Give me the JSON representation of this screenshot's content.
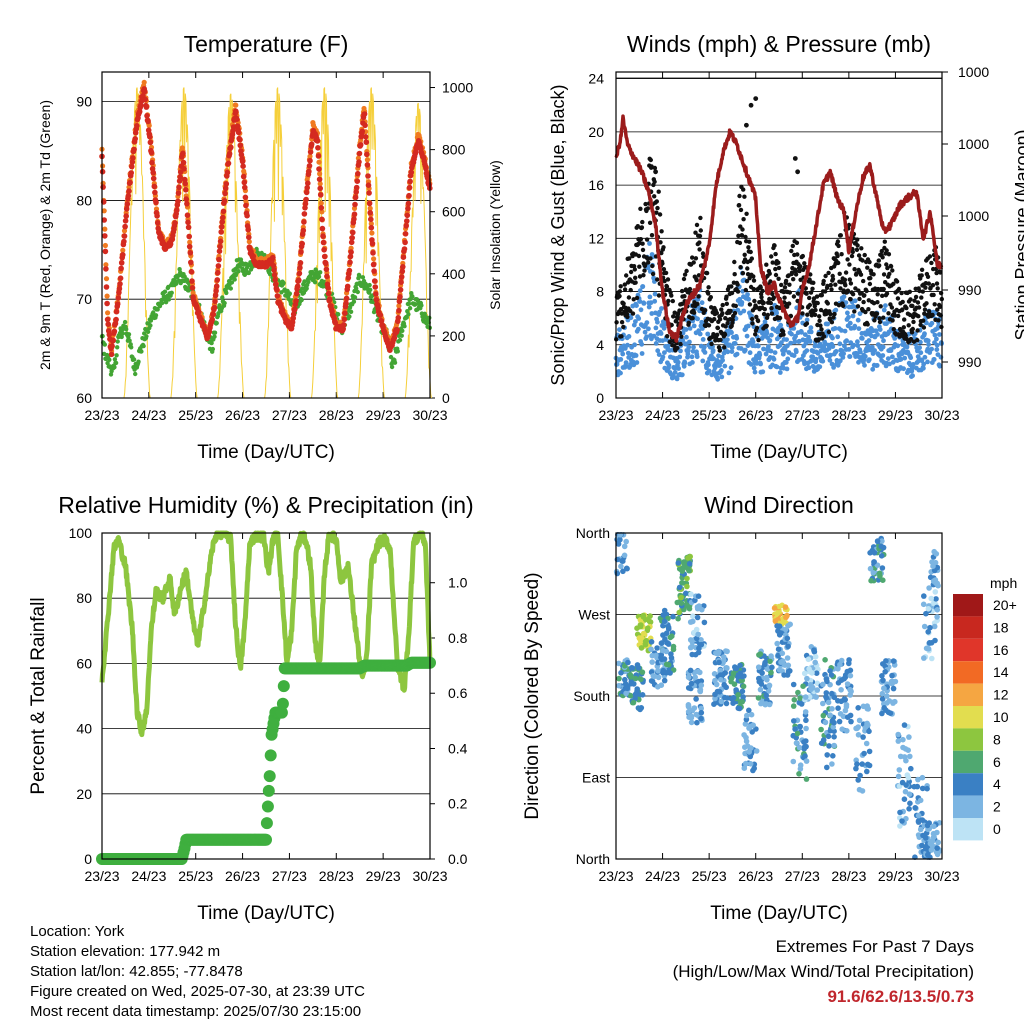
{
  "panels": {
    "temperature": {
      "title": "Temperature (F)",
      "xlabel": "Time (Day/UTC)",
      "ylabel_left": "2m & 9m T (Red, Orange) & 2m Td (Green)",
      "ylabel_right": "Solar Insolation (Yellow)"
    },
    "winds": {
      "title": "Winds (mph) & Pressure (mb)",
      "xlabel": "Time (Day/UTC)",
      "ylabel_left": "Sonic/Prop Wind & Gust (Blue, Black)",
      "ylabel_right": "Station Pressure (Maroon)"
    },
    "humidity": {
      "title": "Relative Humidity (%) & Precipitation (in)",
      "xlabel": "Time (Day/UTC)",
      "ylabel_left": "Percent & Total Rainfall"
    },
    "direction": {
      "title": "Wind Direction",
      "xlabel": "Time (Day/UTC)",
      "ylabel_left": "Direction (Colored By Speed)"
    }
  },
  "info": {
    "location": "Location: York",
    "elevation": "Station elevation: 177.942 m",
    "latlon": "Station lat/lon: 42.855; -77.8478",
    "created": "Figure created on Wed, 2025-07-30, at 23:39 UTC",
    "recent": "Most recent data timestamp: 2025/07/30 23:15:00"
  },
  "extremes": {
    "line1": "Extremes For Past 7 Days",
    "line2": "(High/Low/Max Wind/Total Precipitation)",
    "values": "91.6/62.6/13.5/0.73"
  },
  "chart_data": [
    {
      "type": "line",
      "title": "Temperature (F)",
      "xlabel": "Time (Day/UTC)",
      "ylabel": "2m & 9m T (Red, Orange) & 2m Td (Green)",
      "y2label": "Solar Insolation (Yellow)",
      "x": [
        "23/23",
        "24/23",
        "25/23",
        "26/23",
        "27/23",
        "28/23",
        "29/23",
        "30/23"
      ],
      "ylim": [
        60,
        93
      ],
      "yticks": [
        60,
        70,
        80,
        90
      ],
      "y2lim": [
        0,
        1050
      ],
      "y2ticks": [
        0,
        200,
        400,
        600,
        800,
        1000
      ],
      "series": [
        {
          "axis": "left",
          "color": "#d42a20",
          "points": [
            [
              0,
              84.5
            ],
            [
              0.05,
              78
            ],
            [
              0.12,
              68
            ],
            [
              0.2,
              64.5
            ],
            [
              0.35,
              70
            ],
            [
              0.55,
              80
            ],
            [
              0.75,
              88
            ],
            [
              0.9,
              91.3
            ],
            [
              1.05,
              85
            ],
            [
              1.2,
              77
            ],
            [
              1.35,
              75
            ],
            [
              1.5,
              76
            ],
            [
              1.6,
              79
            ],
            [
              1.72,
              85
            ],
            [
              1.82,
              79
            ],
            [
              1.95,
              70
            ],
            [
              2.1,
              68
            ],
            [
              2.25,
              66
            ],
            [
              2.4,
              69
            ],
            [
              2.55,
              77
            ],
            [
              2.7,
              84
            ],
            [
              2.85,
              89
            ],
            [
              3.0,
              84
            ],
            [
              3.15,
              75
            ],
            [
              3.3,
              73.5
            ],
            [
              3.5,
              73.5
            ],
            [
              3.65,
              74
            ],
            [
              3.75,
              70
            ],
            [
              3.9,
              68
            ],
            [
              4.05,
              67
            ],
            [
              4.2,
              72
            ],
            [
              4.35,
              80
            ],
            [
              4.5,
              87
            ],
            [
              4.6,
              86
            ],
            [
              4.72,
              76
            ],
            [
              4.85,
              70
            ],
            [
              5.0,
              67
            ],
            [
              5.15,
              67
            ],
            [
              5.3,
              74
            ],
            [
              5.5,
              85
            ],
            [
              5.6,
              89
            ],
            [
              5.72,
              79
            ],
            [
              5.85,
              70
            ],
            [
              6.0,
              67
            ],
            [
              6.15,
              65
            ],
            [
              6.3,
              67
            ],
            [
              6.45,
              75
            ],
            [
              6.6,
              83
            ],
            [
              6.75,
              86
            ],
            [
              6.85,
              84.5
            ],
            [
              7.0,
              81
            ]
          ]
        },
        {
          "axis": "left",
          "color": "#f07a20",
          "points": [
            [
              0.55,
              81
            ],
            [
              0.85,
              90
            ],
            [
              2.85,
              88.5
            ],
            [
              4.5,
              87.5
            ],
            [
              5.6,
              88
            ],
            [
              6.75,
              87
            ]
          ]
        },
        {
          "axis": "left",
          "color": "#43a534",
          "points": [
            [
              0,
              66
            ],
            [
              0.1,
              64
            ],
            [
              0.25,
              62.5
            ],
            [
              0.35,
              66
            ],
            [
              0.5,
              67.5
            ],
            [
              0.7,
              63
            ],
            [
              0.9,
              66
            ],
            [
              1.1,
              68.5
            ],
            [
              1.3,
              70
            ],
            [
              1.5,
              71
            ],
            [
              1.65,
              72.5
            ],
            [
              1.8,
              71.5
            ],
            [
              2.0,
              70
            ],
            [
              2.2,
              67
            ],
            [
              2.35,
              65
            ],
            [
              2.5,
              69
            ],
            [
              2.7,
              71
            ],
            [
              2.9,
              73.5
            ],
            [
              3.1,
              73
            ],
            [
              3.3,
              74.5
            ],
            [
              3.5,
              74
            ],
            [
              3.7,
              72
            ],
            [
              3.9,
              71
            ],
            [
              4.1,
              69
            ],
            [
              4.3,
              71
            ],
            [
              4.5,
              72.5
            ],
            [
              4.7,
              72
            ],
            [
              4.9,
              70
            ],
            [
              5.1,
              67
            ],
            [
              5.3,
              69
            ],
            [
              5.5,
              72
            ],
            [
              5.7,
              71
            ],
            [
              5.9,
              68
            ],
            [
              6.1,
              66
            ],
            [
              6.2,
              63
            ],
            [
              6.4,
              67
            ],
            [
              6.6,
              70
            ],
            [
              6.8,
              69
            ],
            [
              6.95,
              67.5
            ]
          ]
        },
        {
          "axis": "right",
          "color": "#f5cf3a",
          "peaks": [
            0.75,
            1.75,
            2.75,
            3.75,
            4.75,
            5.75,
            6.75
          ],
          "peak_values": [
            1000,
            1000,
            980,
            1000,
            1000,
            1000,
            950
          ]
        }
      ]
    },
    {
      "type": "scatter",
      "title": "Winds (mph) & Pressure (mb)",
      "xlabel": "Time (Day/UTC)",
      "ylabel": "Sonic/Prop Wind & Gust (Blue, Black)",
      "y2label": "Station Pressure (Maroon)",
      "x": [
        "23/23",
        "24/23",
        "25/23",
        "26/23",
        "27/23",
        "28/23",
        "29/23",
        "30/23"
      ],
      "ylim": [
        0,
        24.5
      ],
      "yticks": [
        0,
        4,
        8,
        12,
        16,
        20,
        24
      ],
      "y2ticklabels": [
        "1000",
        "1000",
        "1000",
        "990",
        "990"
      ],
      "series": [
        {
          "name": "pressure",
          "color": "#9b1c1c",
          "points": [
            [
              0,
              18
            ],
            [
              0.1,
              19.5
            ],
            [
              0.15,
              21
            ],
            [
              0.25,
              19
            ],
            [
              0.4,
              18
            ],
            [
              0.55,
              17
            ],
            [
              0.7,
              15.5
            ],
            [
              0.85,
              13
            ],
            [
              1.0,
              8
            ],
            [
              1.15,
              5
            ],
            [
              1.3,
              4.5
            ],
            [
              1.5,
              7
            ],
            [
              1.6,
              7.5
            ],
            [
              1.8,
              8.5
            ],
            [
              2.0,
              11.5
            ],
            [
              2.15,
              16
            ],
            [
              2.3,
              18.5
            ],
            [
              2.45,
              20
            ],
            [
              2.6,
              19
            ],
            [
              2.8,
              17
            ],
            [
              3.0,
              15
            ],
            [
              3.1,
              10
            ],
            [
              3.25,
              8
            ],
            [
              3.4,
              8.5
            ],
            [
              3.55,
              7
            ],
            [
              3.75,
              5.5
            ],
            [
              3.9,
              6
            ],
            [
              4.0,
              8
            ],
            [
              4.15,
              10
            ],
            [
              4.3,
              13
            ],
            [
              4.45,
              16
            ],
            [
              4.6,
              17
            ],
            [
              4.75,
              15
            ],
            [
              4.9,
              14
            ],
            [
              5.0,
              11
            ],
            [
              5.15,
              14
            ],
            [
              5.3,
              16.5
            ],
            [
              5.45,
              17.5
            ],
            [
              5.6,
              15
            ],
            [
              5.75,
              12.5
            ],
            [
              5.9,
              13
            ],
            [
              6.1,
              14.5
            ],
            [
              6.25,
              15
            ],
            [
              6.45,
              15.5
            ],
            [
              6.6,
              12
            ],
            [
              6.75,
              14
            ],
            [
              6.9,
              10
            ],
            [
              7.0,
              10
            ]
          ]
        },
        {
          "name": "wind",
          "color": "#4a90d9"
        },
        {
          "name": "gust",
          "color": "#111111"
        }
      ]
    },
    {
      "type": "line",
      "title": "Relative Humidity (%) & Precipitation (in)",
      "xlabel": "Time (Day/UTC)",
      "ylabel": "Percent & Total Rainfall",
      "x": [
        "23/23",
        "24/23",
        "25/23",
        "26/23",
        "27/23",
        "28/23",
        "29/23",
        "30/23"
      ],
      "ylim": [
        0,
        100
      ],
      "yticks": [
        0,
        20,
        40,
        60,
        80,
        100
      ],
      "y2ticks": [
        "0.0",
        "0.2",
        "0.4",
        "0.6",
        "0.8",
        "1.0"
      ],
      "series": [
        {
          "name": "rh",
          "color": "#8dc63f",
          "points": [
            [
              0,
              55
            ],
            [
              0.1,
              70
            ],
            [
              0.25,
              95
            ],
            [
              0.35,
              98
            ],
            [
              0.5,
              90
            ],
            [
              0.65,
              70
            ],
            [
              0.75,
              45
            ],
            [
              0.85,
              39
            ],
            [
              0.95,
              45
            ],
            [
              1.05,
              70
            ],
            [
              1.15,
              82
            ],
            [
              1.3,
              80
            ],
            [
              1.45,
              86
            ],
            [
              1.55,
              75
            ],
            [
              1.7,
              84
            ],
            [
              1.8,
              88
            ],
            [
              1.95,
              72
            ],
            [
              2.05,
              66
            ],
            [
              2.2,
              80
            ],
            [
              2.35,
              95
            ],
            [
              2.45,
              100
            ],
            [
              2.6,
              100
            ],
            [
              2.75,
              98
            ],
            [
              2.85,
              72
            ],
            [
              2.95,
              58
            ],
            [
              3.05,
              72
            ],
            [
              3.15,
              96
            ],
            [
              3.25,
              99
            ],
            [
              3.45,
              99
            ],
            [
              3.55,
              88
            ],
            [
              3.65,
              98
            ],
            [
              3.75,
              100
            ],
            [
              3.85,
              80
            ],
            [
              3.95,
              60
            ],
            [
              4.05,
              70
            ],
            [
              4.15,
              95
            ],
            [
              4.25,
              99
            ],
            [
              4.35,
              98
            ],
            [
              4.45,
              90
            ],
            [
              4.55,
              66
            ],
            [
              4.65,
              60
            ],
            [
              4.75,
              88
            ],
            [
              4.85,
              100
            ],
            [
              5.0,
              98
            ],
            [
              5.1,
              85
            ],
            [
              5.25,
              90
            ],
            [
              5.4,
              72
            ],
            [
              5.55,
              55
            ],
            [
              5.65,
              62
            ],
            [
              5.75,
              90
            ],
            [
              5.9,
              97
            ],
            [
              6.05,
              98
            ],
            [
              6.15,
              95
            ],
            [
              6.3,
              60
            ],
            [
              6.45,
              52
            ],
            [
              6.55,
              70
            ],
            [
              6.65,
              97
            ],
            [
              6.8,
              100
            ],
            [
              6.9,
              97
            ],
            [
              7.0,
              60
            ]
          ]
        },
        {
          "name": "precip",
          "color": "#3faf3f",
          "points": [
            [
              0,
              0
            ],
            [
              1.7,
              0
            ],
            [
              1.75,
              0.03
            ],
            [
              1.8,
              0.07
            ],
            [
              3.5,
              0.07
            ],
            [
              3.55,
              0.22
            ],
            [
              3.58,
              0.3
            ],
            [
              3.62,
              0.45
            ],
            [
              3.7,
              0.53
            ],
            [
              3.85,
              0.53
            ],
            [
              3.9,
              0.69
            ],
            [
              5.5,
              0.69
            ],
            [
              5.6,
              0.7
            ],
            [
              6.5,
              0.7
            ],
            [
              6.6,
              0.71
            ],
            [
              7.0,
              0.71
            ]
          ],
          "ylim": [
            0,
            1.18
          ]
        }
      ]
    },
    {
      "type": "scatter",
      "title": "Wind Direction",
      "xlabel": "Time (Day/UTC)",
      "ylabel": "Direction (Colored By Speed)",
      "x": [
        "23/23",
        "24/23",
        "25/23",
        "26/23",
        "27/23",
        "28/23",
        "29/23",
        "30/23"
      ],
      "yticklabels": [
        "North",
        "East",
        "South",
        "West",
        "North"
      ],
      "colorbar": {
        "title": "mph",
        "labels": [
          "20+",
          "18",
          "16",
          "14",
          "12",
          "10",
          "8",
          "6",
          "4",
          "2",
          "0"
        ],
        "colors": [
          "#a01818",
          "#c8281f",
          "#e0362a",
          "#f26a24",
          "#f5a642",
          "#e2dd4f",
          "#8dc63f",
          "#4fa870",
          "#3a80c4",
          "#7cb5e2",
          "#bde3f5"
        ]
      }
    }
  ]
}
